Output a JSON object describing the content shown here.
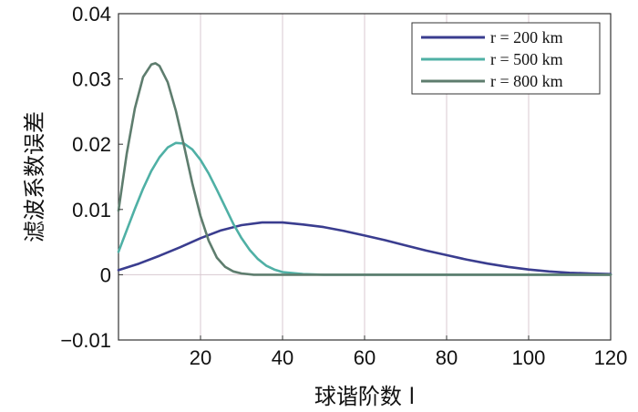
{
  "chart_data": {
    "type": "line",
    "xlabel": "球谐阶数 l",
    "ylabel": "滤波系数误差",
    "xlim": [
      0,
      120
    ],
    "ylim": [
      -0.01,
      0.04
    ],
    "xticks": [
      20,
      40,
      60,
      80,
      100,
      120
    ],
    "xtick_labels": [
      "20",
      "40",
      "60",
      "80",
      "100",
      "120"
    ],
    "yticks": [
      -0.01,
      0,
      0.01,
      0.02,
      0.03,
      0.04
    ],
    "ytick_labels": [
      "−0.01",
      "0",
      "0.01",
      "0.02",
      "0.03",
      "0.04"
    ],
    "grid": true,
    "legend_position": "top-right",
    "series": [
      {
        "name": "r = 200 km",
        "color": "#3a3d8f",
        "x": [
          0,
          5,
          10,
          15,
          20,
          25,
          30,
          35,
          38,
          40,
          45,
          50,
          55,
          60,
          65,
          70,
          75,
          80,
          85,
          90,
          95,
          100,
          105,
          110,
          115,
          120
        ],
        "values": [
          0.0007,
          0.0017,
          0.0029,
          0.0042,
          0.0056,
          0.0068,
          0.0076,
          0.008,
          0.008,
          0.008,
          0.0077,
          0.0073,
          0.0067,
          0.006,
          0.0053,
          0.0045,
          0.0037,
          0.003,
          0.0023,
          0.0017,
          0.0012,
          0.0008,
          0.0005,
          0.0003,
          0.0002,
          0.0001
        ]
      },
      {
        "name": "r = 500 km",
        "color": "#4fb0a5",
        "x": [
          0,
          2,
          4,
          6,
          8,
          10,
          12,
          14,
          16,
          18,
          20,
          22,
          24,
          26,
          28,
          30,
          32,
          34,
          36,
          38,
          40,
          45,
          50,
          55,
          60,
          120
        ],
        "values": [
          0.0035,
          0.0068,
          0.0101,
          0.0132,
          0.0159,
          0.018,
          0.0195,
          0.0202,
          0.0201,
          0.0192,
          0.0176,
          0.0155,
          0.013,
          0.0104,
          0.0078,
          0.0056,
          0.0038,
          0.0024,
          0.0014,
          0.0008,
          0.0004,
          0.0001,
          0.0,
          0.0,
          0.0,
          0.0
        ]
      },
      {
        "name": "r = 800 km",
        "color": "#5e7d6e",
        "x": [
          0,
          2,
          4,
          6,
          8,
          9,
          10,
          12,
          14,
          16,
          18,
          20,
          22,
          24,
          26,
          28,
          30,
          33,
          36,
          40,
          50,
          60,
          120
        ],
        "values": [
          0.0098,
          0.0185,
          0.0255,
          0.0303,
          0.0322,
          0.0324,
          0.032,
          0.0295,
          0.0251,
          0.0197,
          0.014,
          0.009,
          0.0052,
          0.0026,
          0.0012,
          0.0005,
          0.0002,
          0.0,
          0.0,
          0.0,
          0.0,
          0.0,
          0.0
        ]
      }
    ]
  }
}
